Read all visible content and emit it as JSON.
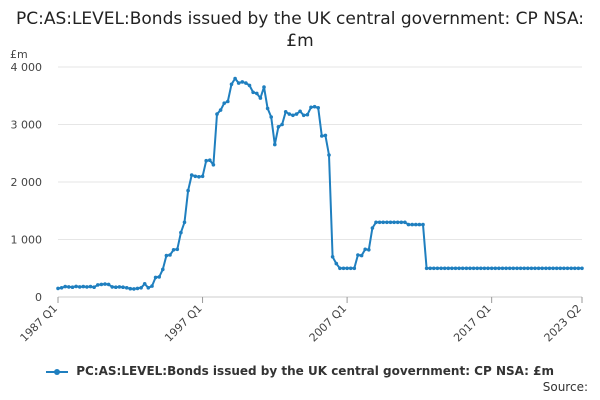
{
  "chart_data": {
    "type": "line",
    "title": "PC:AS:LEVEL:Bonds issued by the UK central government: CP NSA: £m",
    "unit_label": "£m",
    "ylim": [
      0,
      4000
    ],
    "yticks": [
      0,
      1000,
      2000,
      3000,
      4000
    ],
    "ytick_labels": [
      "0",
      "1 000",
      "2 000",
      "3 000",
      "4 000"
    ],
    "xlim": [
      1987.0,
      2023.25
    ],
    "xticks": [
      1987.0,
      1997.0,
      2007.0,
      2017.0,
      2023.25
    ],
    "xtick_labels": [
      "1987 Q1",
      "1997 Q1",
      "2007 Q1",
      "2017 Q1",
      "2023 Q2"
    ],
    "grid": "horizontal",
    "color": "#1f7fbf",
    "legend_position": "bottom",
    "series": [
      {
        "name": "PC:AS:LEVEL:Bonds issued by the UK central government: CP NSA: £m",
        "points": [
          [
            1987.0,
            150
          ],
          [
            1987.25,
            160
          ],
          [
            1987.5,
            180
          ],
          [
            1987.75,
            175
          ],
          [
            1988.0,
            170
          ],
          [
            1988.25,
            185
          ],
          [
            1988.5,
            175
          ],
          [
            1988.75,
            180
          ],
          [
            1989.0,
            175
          ],
          [
            1989.25,
            180
          ],
          [
            1989.5,
            170
          ],
          [
            1989.75,
            210
          ],
          [
            1990.0,
            220
          ],
          [
            1990.25,
            225
          ],
          [
            1990.5,
            220
          ],
          [
            1990.75,
            175
          ],
          [
            1991.0,
            170
          ],
          [
            1991.25,
            175
          ],
          [
            1991.5,
            170
          ],
          [
            1991.75,
            160
          ],
          [
            1992.0,
            145
          ],
          [
            1992.25,
            140
          ],
          [
            1992.5,
            150
          ],
          [
            1992.75,
            160
          ],
          [
            1993.0,
            230
          ],
          [
            1993.25,
            160
          ],
          [
            1993.5,
            190
          ],
          [
            1993.75,
            340
          ],
          [
            1994.0,
            350
          ],
          [
            1994.25,
            480
          ],
          [
            1994.5,
            720
          ],
          [
            1994.75,
            730
          ],
          [
            1995.0,
            820
          ],
          [
            1995.25,
            830
          ],
          [
            1995.5,
            1120
          ],
          [
            1995.75,
            1300
          ],
          [
            1996.0,
            1850
          ],
          [
            1996.25,
            2120
          ],
          [
            1996.5,
            2100
          ],
          [
            1996.75,
            2090
          ],
          [
            1997.0,
            2100
          ],
          [
            1997.25,
            2370
          ],
          [
            1997.5,
            2380
          ],
          [
            1997.75,
            2300
          ],
          [
            1998.0,
            3180
          ],
          [
            1998.25,
            3250
          ],
          [
            1998.5,
            3370
          ],
          [
            1998.75,
            3400
          ],
          [
            1999.0,
            3700
          ],
          [
            1999.25,
            3800
          ],
          [
            1999.5,
            3720
          ],
          [
            1999.75,
            3740
          ],
          [
            2000.0,
            3720
          ],
          [
            2000.25,
            3680
          ],
          [
            2000.5,
            3560
          ],
          [
            2000.75,
            3540
          ],
          [
            2001.0,
            3460
          ],
          [
            2001.25,
            3650
          ],
          [
            2001.5,
            3280
          ],
          [
            2001.75,
            3130
          ],
          [
            2002.0,
            2650
          ],
          [
            2002.25,
            2960
          ],
          [
            2002.5,
            3000
          ],
          [
            2002.75,
            3220
          ],
          [
            2003.0,
            3180
          ],
          [
            2003.25,
            3160
          ],
          [
            2003.5,
            3180
          ],
          [
            2003.75,
            3230
          ],
          [
            2004.0,
            3160
          ],
          [
            2004.25,
            3170
          ],
          [
            2004.5,
            3300
          ],
          [
            2004.75,
            3310
          ],
          [
            2005.0,
            3290
          ],
          [
            2005.25,
            2800
          ],
          [
            2005.5,
            2810
          ],
          [
            2005.75,
            2470
          ],
          [
            2006.0,
            700
          ],
          [
            2006.25,
            580
          ],
          [
            2006.5,
            500
          ],
          [
            2006.75,
            500
          ],
          [
            2007.0,
            500
          ],
          [
            2007.25,
            500
          ],
          [
            2007.5,
            500
          ],
          [
            2007.75,
            730
          ],
          [
            2008.0,
            720
          ],
          [
            2008.25,
            830
          ],
          [
            2008.5,
            820
          ],
          [
            2008.75,
            1200
          ],
          [
            2009.0,
            1300
          ],
          [
            2009.25,
            1300
          ],
          [
            2009.5,
            1300
          ],
          [
            2009.75,
            1300
          ],
          [
            2010.0,
            1300
          ],
          [
            2010.25,
            1300
          ],
          [
            2010.5,
            1300
          ],
          [
            2010.75,
            1300
          ],
          [
            2011.0,
            1300
          ],
          [
            2011.25,
            1260
          ],
          [
            2011.5,
            1260
          ],
          [
            2011.75,
            1260
          ],
          [
            2012.0,
            1260
          ],
          [
            2012.25,
            1260
          ],
          [
            2012.5,
            500
          ],
          [
            2012.75,
            500
          ],
          [
            2013.0,
            500
          ],
          [
            2013.25,
            500
          ],
          [
            2013.5,
            500
          ],
          [
            2013.75,
            500
          ],
          [
            2014.0,
            500
          ],
          [
            2014.25,
            500
          ],
          [
            2014.5,
            500
          ],
          [
            2014.75,
            500
          ],
          [
            2015.0,
            500
          ],
          [
            2015.25,
            500
          ],
          [
            2015.5,
            500
          ],
          [
            2015.75,
            500
          ],
          [
            2016.0,
            500
          ],
          [
            2016.25,
            500
          ],
          [
            2016.5,
            500
          ],
          [
            2016.75,
            500
          ],
          [
            2017.0,
            500
          ],
          [
            2017.25,
            500
          ],
          [
            2017.5,
            500
          ],
          [
            2017.75,
            500
          ],
          [
            2018.0,
            500
          ],
          [
            2018.25,
            500
          ],
          [
            2018.5,
            500
          ],
          [
            2018.75,
            500
          ],
          [
            2019.0,
            500
          ],
          [
            2019.25,
            500
          ],
          [
            2019.5,
            500
          ],
          [
            2019.75,
            500
          ],
          [
            2020.0,
            500
          ],
          [
            2020.25,
            500
          ],
          [
            2020.5,
            500
          ],
          [
            2020.75,
            500
          ],
          [
            2021.0,
            500
          ],
          [
            2021.25,
            500
          ],
          [
            2021.5,
            500
          ],
          [
            2021.75,
            500
          ],
          [
            2022.0,
            500
          ],
          [
            2022.25,
            500
          ],
          [
            2022.5,
            500
          ],
          [
            2022.75,
            500
          ],
          [
            2023.0,
            500
          ],
          [
            2023.25,
            500
          ]
        ]
      }
    ]
  },
  "footer": {
    "source_label": "Source:"
  }
}
